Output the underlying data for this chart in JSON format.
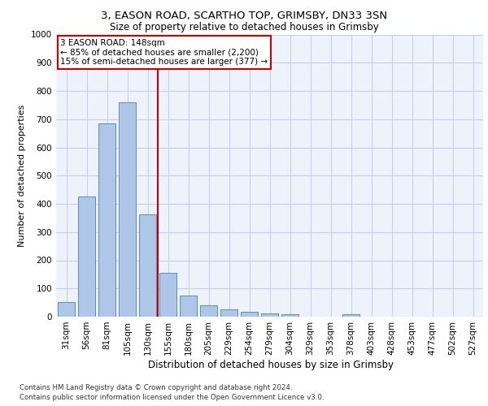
{
  "title1": "3, EASON ROAD, SCARTHO TOP, GRIMSBY, DN33 3SN",
  "title2": "Size of property relative to detached houses in Grimsby",
  "xlabel": "Distribution of detached houses by size in Grimsby",
  "ylabel": "Number of detached properties",
  "categories": [
    "31sqm",
    "56sqm",
    "81sqm",
    "105sqm",
    "130sqm",
    "155sqm",
    "180sqm",
    "205sqm",
    "229sqm",
    "254sqm",
    "279sqm",
    "304sqm",
    "329sqm",
    "353sqm",
    "378sqm",
    "403sqm",
    "428sqm",
    "453sqm",
    "477sqm",
    "502sqm",
    "527sqm"
  ],
  "values": [
    52,
    425,
    685,
    760,
    362,
    155,
    75,
    40,
    27,
    18,
    12,
    10,
    0,
    0,
    10,
    0,
    0,
    0,
    0,
    0,
    0
  ],
  "bar_color": "#aec6e8",
  "bar_edge_color": "#5b8db8",
  "annotation_line1": "3 EASON ROAD: 148sqm",
  "annotation_line2": "← 85% of detached houses are smaller (2,200)",
  "annotation_line3": "15% of semi-detached houses are larger (377) →",
  "vline_color": "#cc0000",
  "annotation_box_color": "#ffffff",
  "annotation_box_edge": "#cc0000",
  "ylim": [
    0,
    1000
  ],
  "yticks": [
    0,
    100,
    200,
    300,
    400,
    500,
    600,
    700,
    800,
    900,
    1000
  ],
  "footer1": "Contains HM Land Registry data © Crown copyright and database right 2024.",
  "footer2": "Contains public sector information licensed under the Open Government Licence v3.0.",
  "background_color": "#eef2fb",
  "grid_color": "#c8cfe8",
  "title1_fontsize": 9.5,
  "title2_fontsize": 8.5,
  "xlabel_fontsize": 8.5,
  "ylabel_fontsize": 8.0,
  "tick_fontsize": 7.5,
  "footer_fontsize": 6.2,
  "annot_fontsize": 7.5
}
